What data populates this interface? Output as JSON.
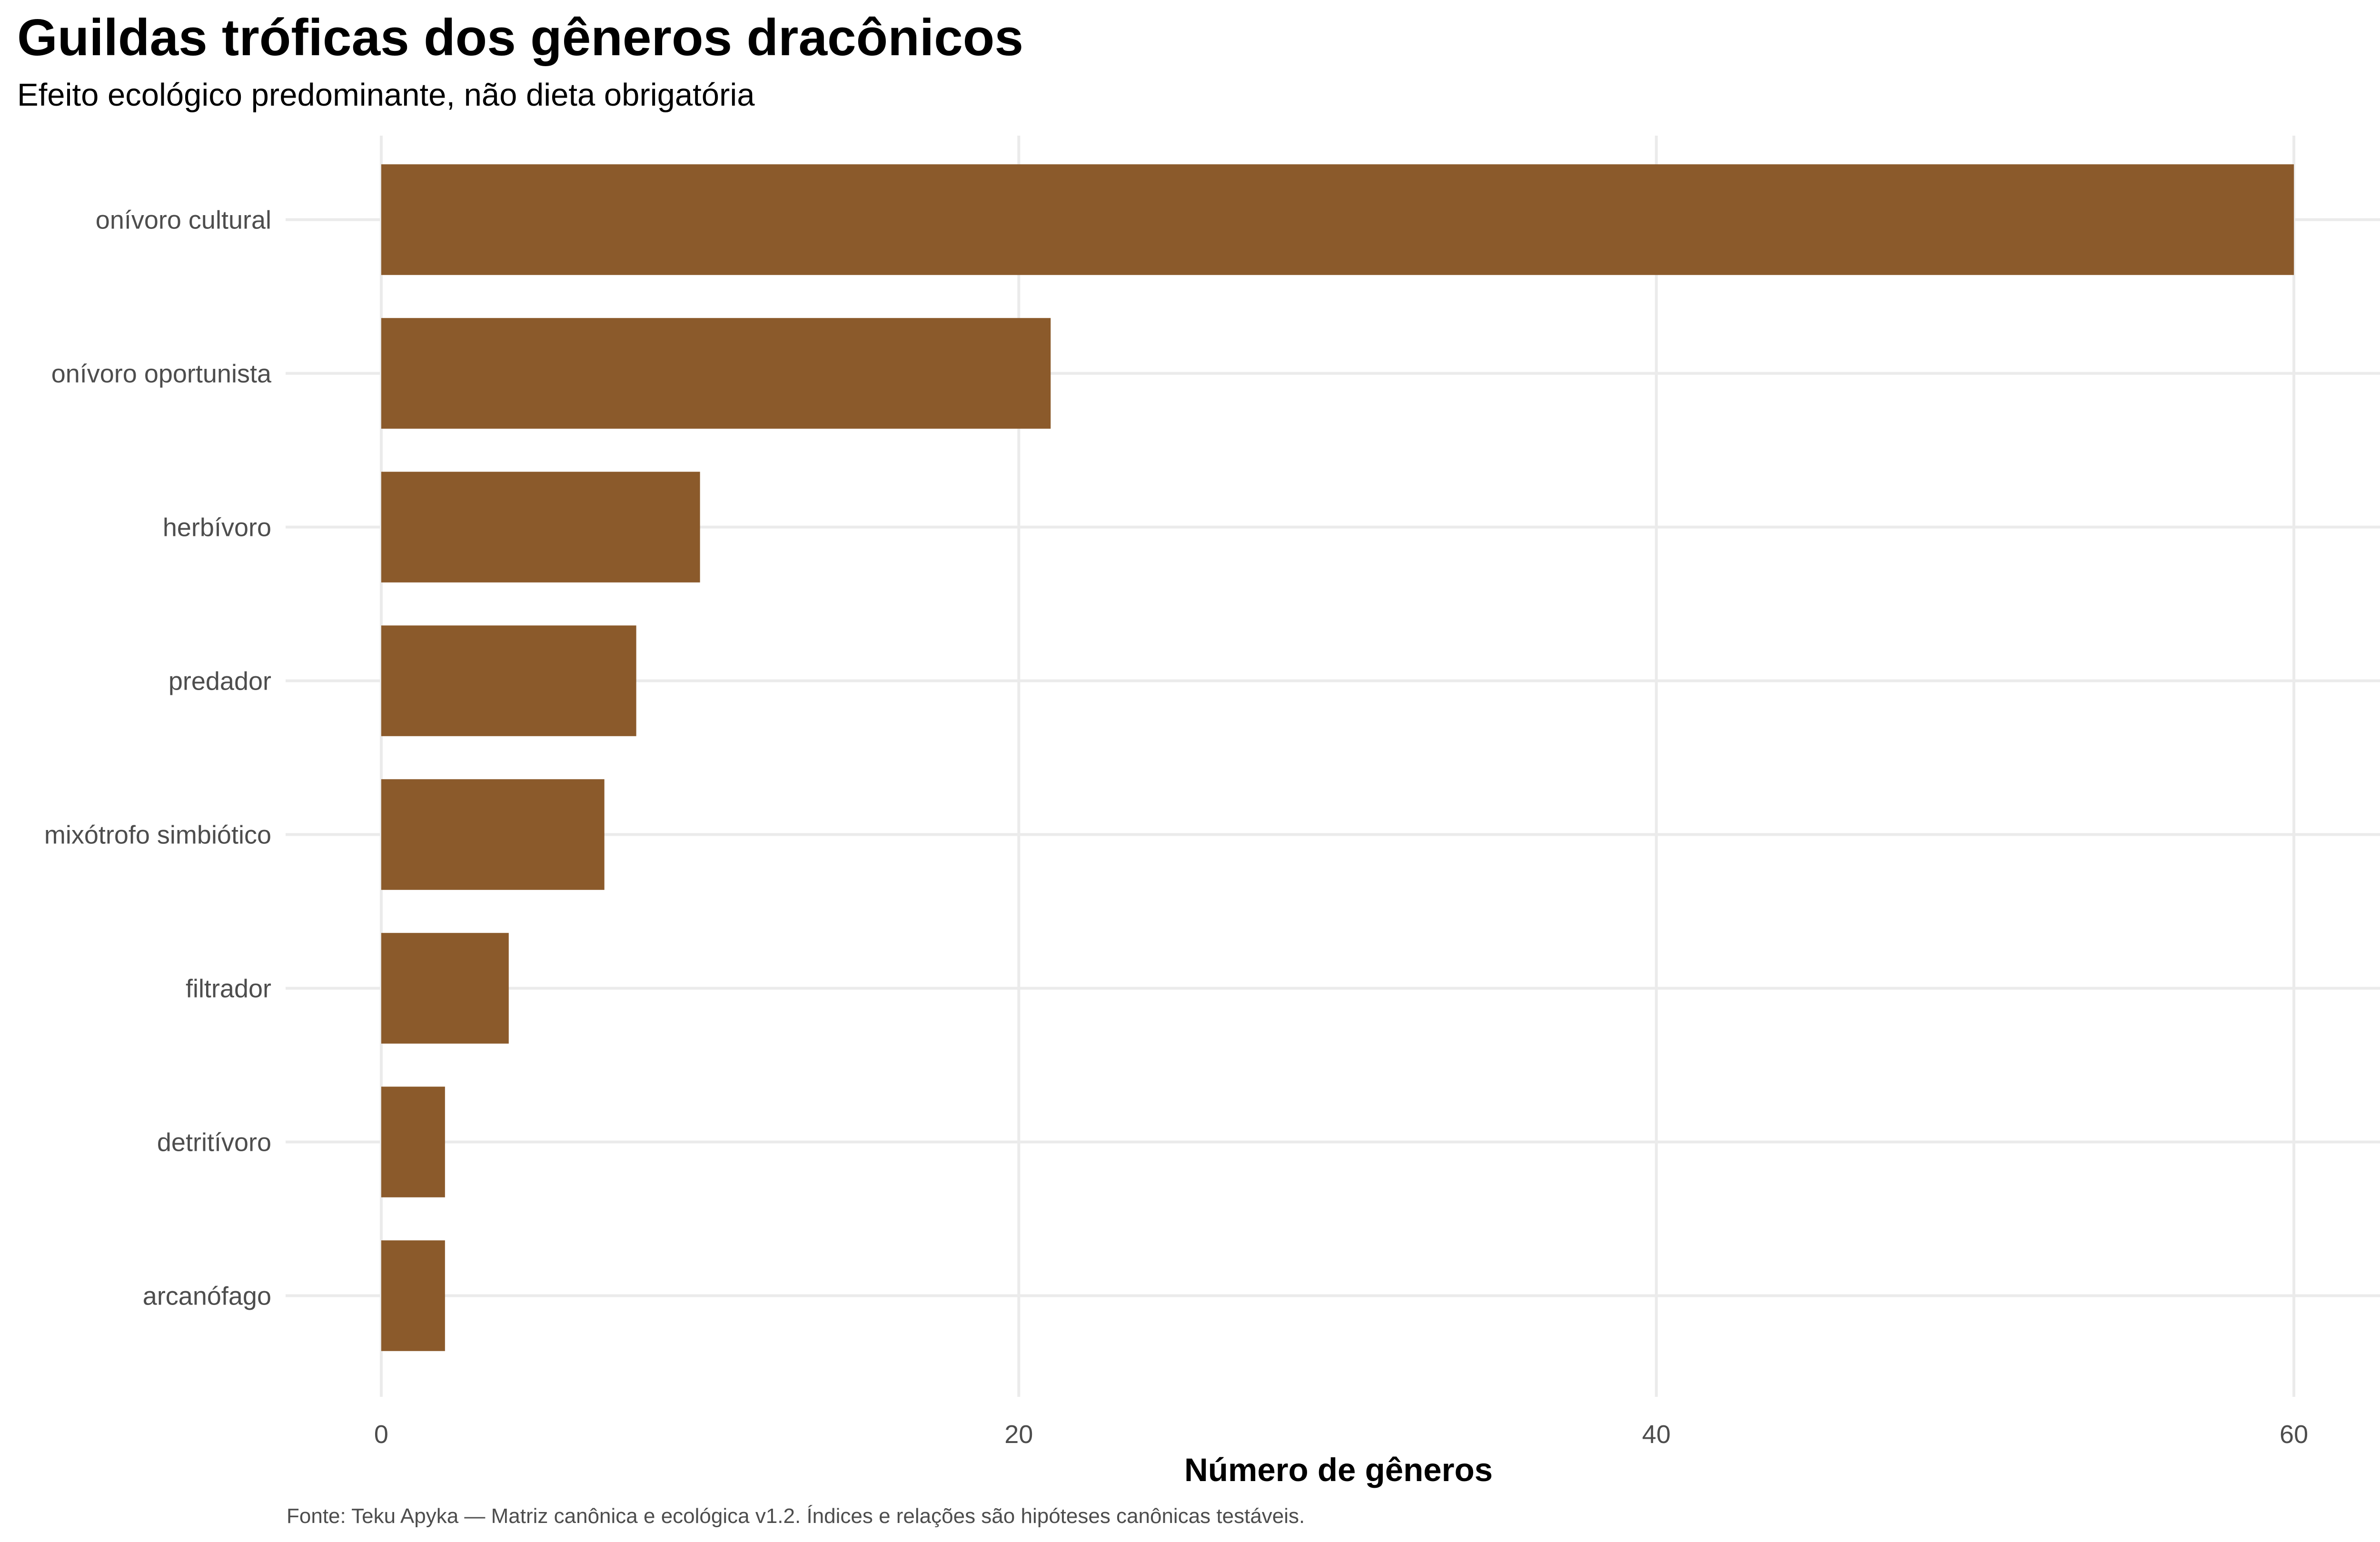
{
  "chart_data": {
    "type": "bar",
    "orientation": "horizontal",
    "title": "Guildas tróficas dos gêneros dracônicos",
    "subtitle": "Efeito ecológico predominante, não dieta obrigatória",
    "xlabel": "Número de gêneros",
    "ylabel": "",
    "caption": "Fonte: Teku Apyka — Matriz canônica e ecológica v1.2. Índices e relações são hipóteses canônicas testáveis.",
    "categories": [
      "onívoro cultural",
      "onívoro oportunista",
      "herbívoro",
      "predador",
      "mixótrofo simbiótico",
      "filtrador",
      "detritívoro",
      "arcanófago"
    ],
    "values": [
      60,
      21,
      10,
      8,
      7,
      4,
      2,
      2
    ],
    "xlim": [
      -3,
      63
    ],
    "xticks": [
      0,
      20,
      40,
      60
    ],
    "grid": true,
    "legend": "none",
    "bar_color": "#8b5a2b"
  }
}
